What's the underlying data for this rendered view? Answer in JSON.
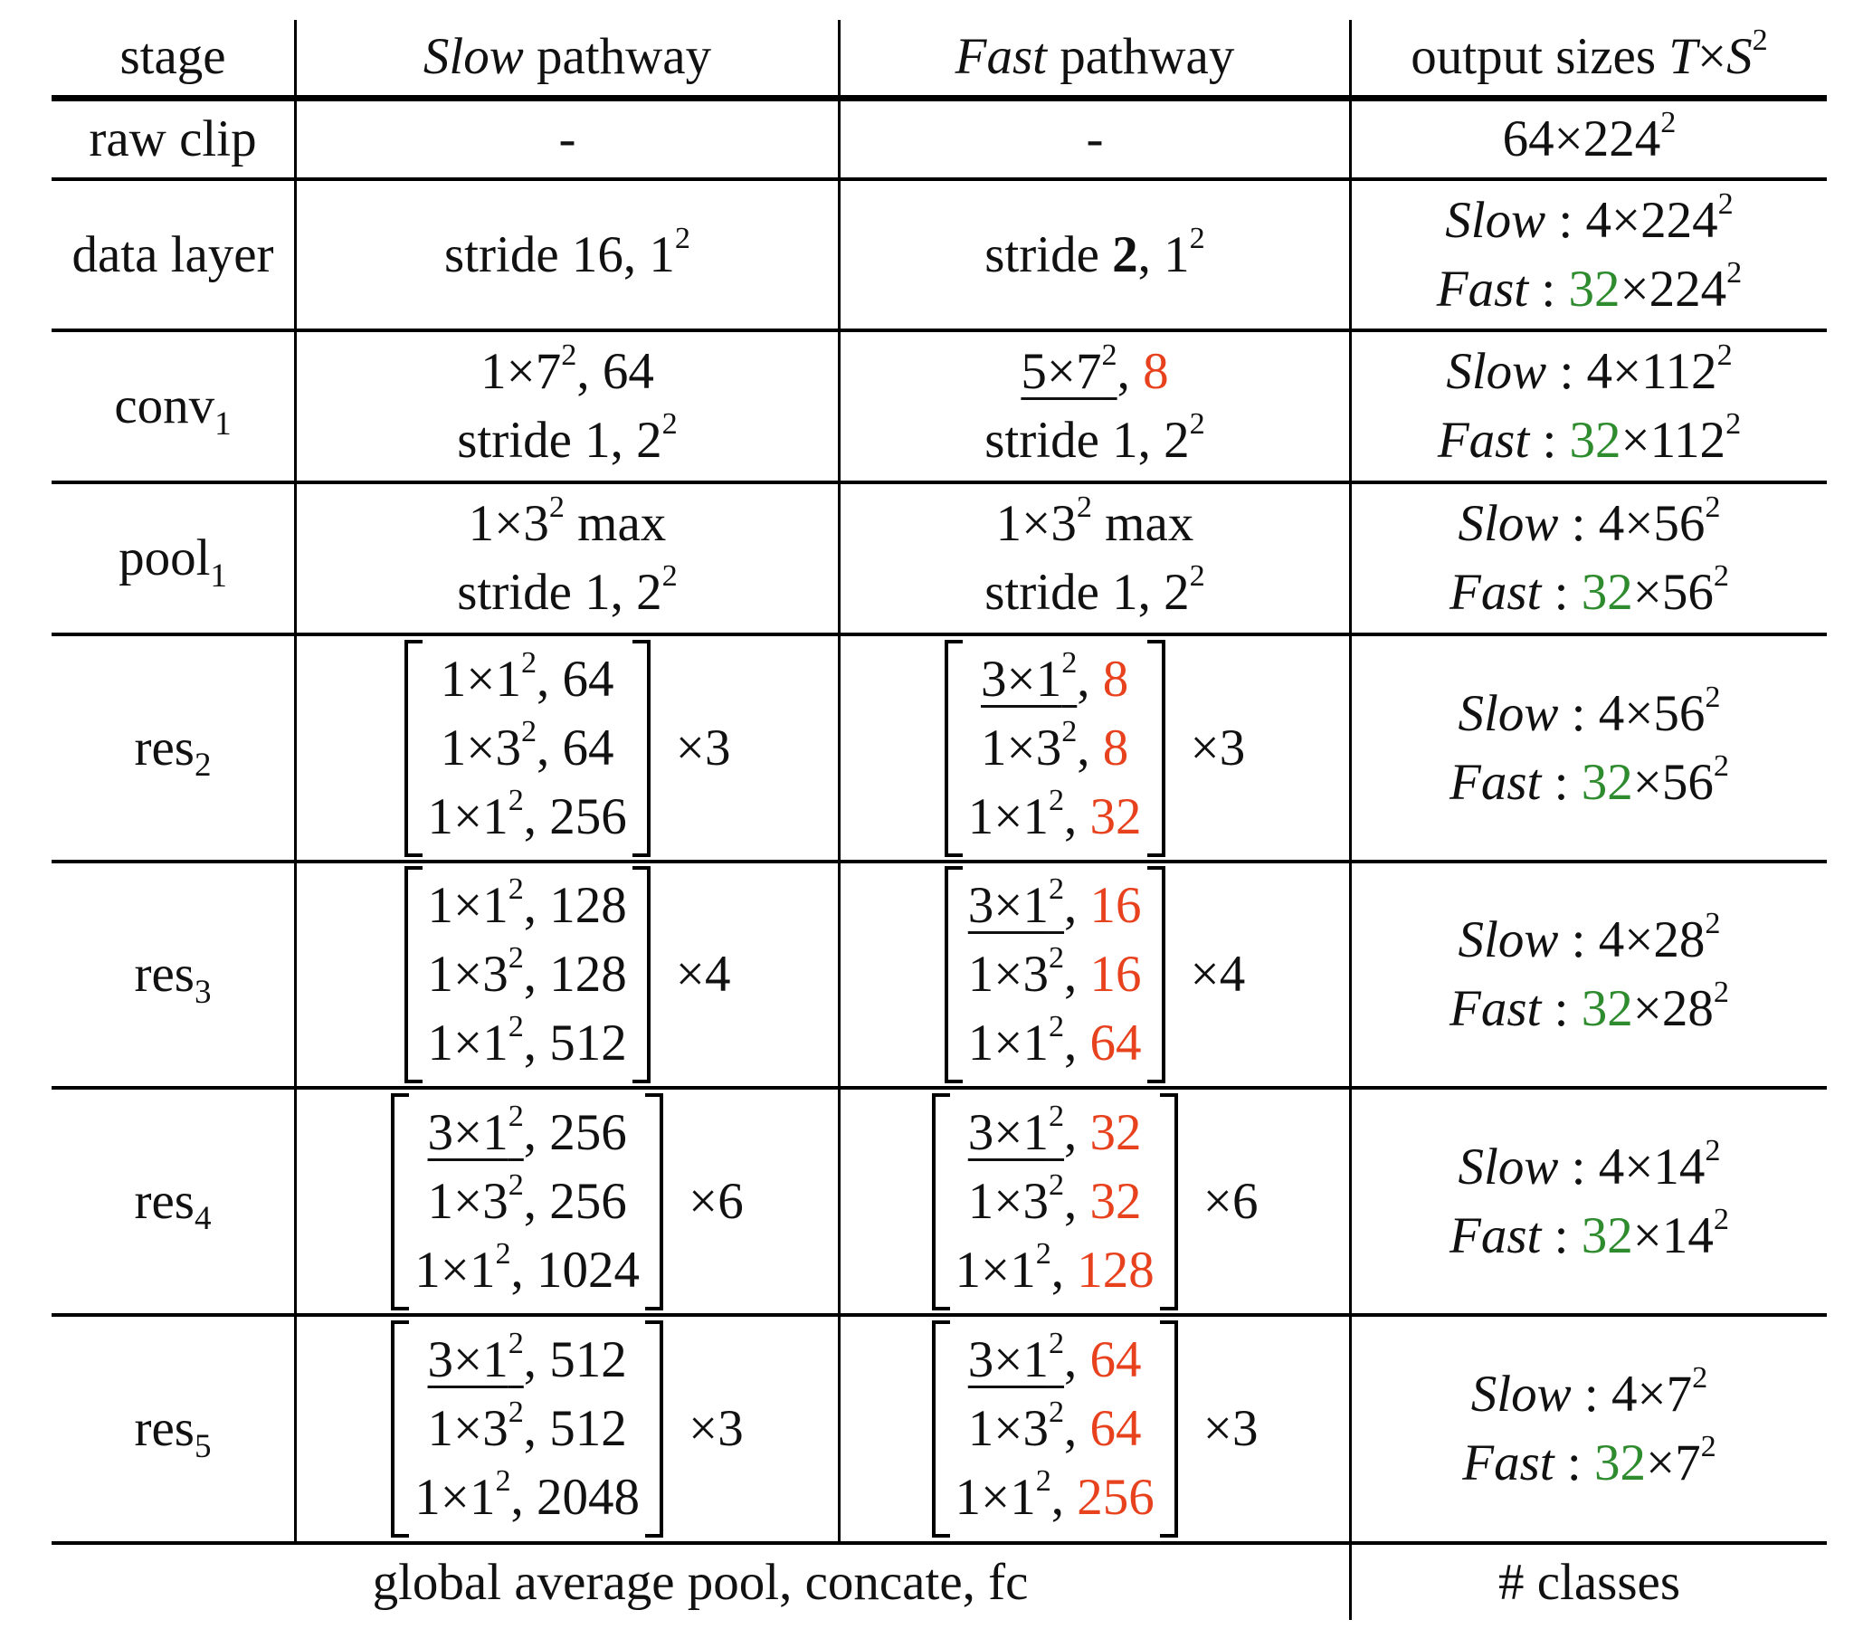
{
  "header": {
    "stage": "stage",
    "slow_italic": "Slow",
    "slow_rest": " pathway",
    "fast_italic": "Fast",
    "fast_rest": " pathway",
    "output_text": "output sizes ",
    "output_T": "T",
    "output_times": "×",
    "output_S": "S",
    "output_sup": "2"
  },
  "colors": {
    "fast_channels": "#e8411e",
    "fast_frames": "#2e8b2e"
  },
  "rows": {
    "raw": {
      "stage": "raw clip",
      "slow": "-",
      "fast": "-",
      "out_base": "64×224",
      "out_sup": "2"
    },
    "data": {
      "stage": "data layer",
      "slow_a": "stride 16, 1",
      "slow_sup": "2",
      "fast_a": "stride ",
      "fast_bold": "2",
      "fast_b": ", 1",
      "fast_sup": "2",
      "out_slow_label": "Slow",
      "out_slow_val": " : 4×224",
      "out_slow_sup": "2",
      "out_fast_label": "Fast",
      "out_fast_colon": " : ",
      "out_fast_frames": "32",
      "out_fast_val": "×224",
      "out_fast_sup": "2"
    },
    "conv1": {
      "stage_base": "conv",
      "stage_sub": "1",
      "slow_l1_a": "1×7",
      "slow_l1_sup": "2",
      "slow_l1_b": ", 64",
      "slow_l2_a": "stride 1, 2",
      "slow_l2_sup": "2",
      "fast_l1_a": "5×7",
      "fast_l1_sup": "2",
      "fast_l1_sep": ", ",
      "fast_l1_ch": "8",
      "fast_l2_a": "stride 1, 2",
      "fast_l2_sup": "2",
      "out_slow_label": "Slow",
      "out_slow_val": " : 4×112",
      "out_slow_sup": "2",
      "out_fast_label": "Fast",
      "out_fast_colon": " : ",
      "out_fast_frames": "32",
      "out_fast_val": "×112",
      "out_fast_sup": "2"
    },
    "pool1": {
      "stage_base": "pool",
      "stage_sub": "1",
      "slow_l1_a": "1×3",
      "slow_l1_sup": "2",
      "slow_l1_b": " max",
      "slow_l2_a": "stride 1, 2",
      "slow_l2_sup": "2",
      "fast_l1_a": "1×3",
      "fast_l1_sup": "2",
      "fast_l1_b": " max",
      "fast_l2_a": "stride 1, 2",
      "fast_l2_sup": "2",
      "out_slow_label": "Slow",
      "out_slow_val": " : 4×56",
      "out_slow_sup": "2",
      "out_fast_label": "Fast",
      "out_fast_colon": " : ",
      "out_fast_frames": "32",
      "out_fast_val": "×56",
      "out_fast_sup": "2"
    },
    "res2": {
      "stage_base": "res",
      "stage_sub": "2",
      "slow": [
        {
          "k": "1×1",
          "s": "2",
          "c": ", 64"
        },
        {
          "k": "1×3",
          "s": "2",
          "c": ", 64"
        },
        {
          "k": "1×1",
          "s": "2",
          "c": ", 256"
        }
      ],
      "slow_mult": "×3",
      "fast": [
        {
          "k": "3×1",
          "s": "2",
          "sep": ", ",
          "c": "8"
        },
        {
          "k": "1×3",
          "s": "2",
          "sep": ", ",
          "c": "8"
        },
        {
          "k": "1×1",
          "s": "2",
          "sep": ", ",
          "c": "32"
        }
      ],
      "fast_mult": "×3",
      "out_slow_label": "Slow",
      "out_slow_val": " : 4×56",
      "out_slow_sup": "2",
      "out_fast_label": "Fast",
      "out_fast_colon": " : ",
      "out_fast_frames": "32",
      "out_fast_val": "×56",
      "out_fast_sup": "2"
    },
    "res3": {
      "stage_base": "res",
      "stage_sub": "3",
      "slow": [
        {
          "k": "1×1",
          "s": "2",
          "c": ", 128"
        },
        {
          "k": "1×3",
          "s": "2",
          "c": ", 128"
        },
        {
          "k": "1×1",
          "s": "2",
          "c": ", 512"
        }
      ],
      "slow_mult": "×4",
      "fast": [
        {
          "k": "3×1",
          "s": "2",
          "sep": ", ",
          "c": "16"
        },
        {
          "k": "1×3",
          "s": "2",
          "sep": ", ",
          "c": "16"
        },
        {
          "k": "1×1",
          "s": "2",
          "sep": ", ",
          "c": "64"
        }
      ],
      "fast_mult": "×4",
      "out_slow_label": "Slow",
      "out_slow_val": " : 4×28",
      "out_slow_sup": "2",
      "out_fast_label": "Fast",
      "out_fast_colon": " : ",
      "out_fast_frames": "32",
      "out_fast_val": "×28",
      "out_fast_sup": "2"
    },
    "res4": {
      "stage_base": "res",
      "stage_sub": "4",
      "slow": [
        {
          "k": "3×1",
          "s": "2",
          "c": ", 256"
        },
        {
          "k": "1×3",
          "s": "2",
          "c": ", 256"
        },
        {
          "k": "1×1",
          "s": "2",
          "c": ", 1024"
        }
      ],
      "slow_mult": "×6",
      "fast": [
        {
          "k": "3×1",
          "s": "2",
          "sep": ", ",
          "c": "32"
        },
        {
          "k": "1×3",
          "s": "2",
          "sep": ", ",
          "c": "32"
        },
        {
          "k": "1×1",
          "s": "2",
          "sep": ", ",
          "c": "128"
        }
      ],
      "fast_mult": "×6",
      "out_slow_label": "Slow",
      "out_slow_val": " : 4×14",
      "out_slow_sup": "2",
      "out_fast_label": "Fast",
      "out_fast_colon": " : ",
      "out_fast_frames": "32",
      "out_fast_val": "×14",
      "out_fast_sup": "2"
    },
    "res5": {
      "stage_base": "res",
      "stage_sub": "5",
      "slow": [
        {
          "k": "3×1",
          "s": "2",
          "c": ", 512"
        },
        {
          "k": "1×3",
          "s": "2",
          "c": ", 512"
        },
        {
          "k": "1×1",
          "s": "2",
          "c": ", 2048"
        }
      ],
      "slow_mult": "×3",
      "fast": [
        {
          "k": "3×1",
          "s": "2",
          "sep": ", ",
          "c": "64"
        },
        {
          "k": "1×3",
          "s": "2",
          "sep": ", ",
          "c": "64"
        },
        {
          "k": "1×1",
          "s": "2",
          "sep": ", ",
          "c": "256"
        }
      ],
      "fast_mult": "×3",
      "out_slow_label": "Slow",
      "out_slow_val": " : 4×7",
      "out_slow_sup": "2",
      "out_fast_label": "Fast",
      "out_fast_colon": " : ",
      "out_fast_frames": "32",
      "out_fast_val": "×7",
      "out_fast_sup": "2"
    }
  },
  "footer": {
    "left": "global average pool, concate, fc",
    "right": "# classes"
  }
}
